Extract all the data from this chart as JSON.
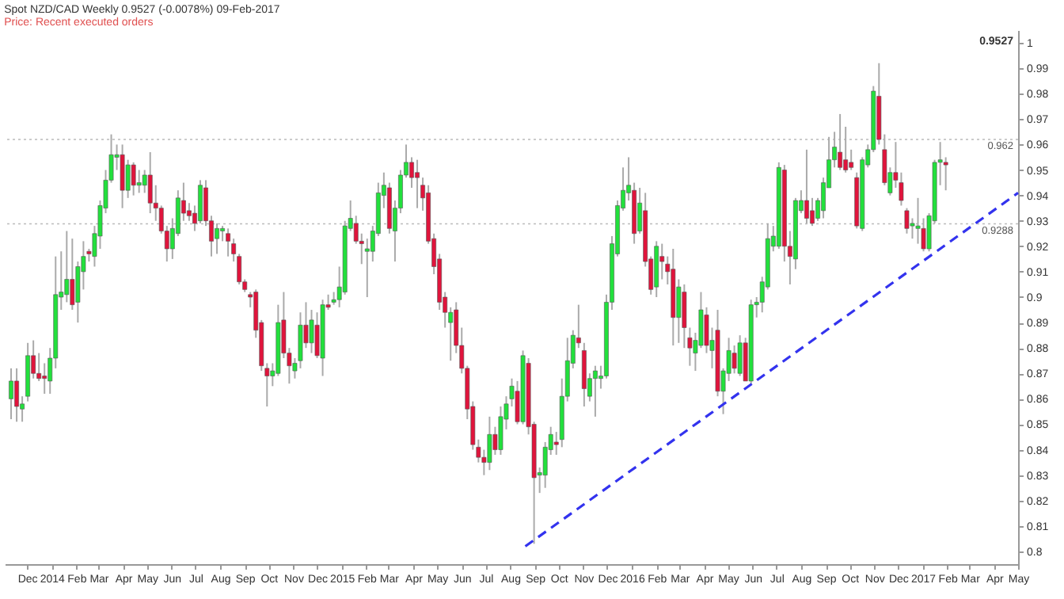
{
  "chart_data": {
    "type": "candlestick",
    "title": "Spot NZD/CAD   Weekly   0.9527 (-0.0078%)   09-Feb-2017",
    "subtitle": "Price: Recent executed orders",
    "colors": [
      "#22e03c",
      "#e0143c",
      "#22e03c",
      "#22e03c",
      "#e0143c",
      "#e0143c",
      "#e0143c",
      "#22e03c",
      "#22e03c",
      "#22e03c",
      "#22e03c",
      "#e0143c",
      "#22e03c",
      "#22e03c",
      "#e0143c",
      "#22e03c",
      "#22e03c",
      "#22e03c",
      "#22e03c",
      "#22e03c",
      "#e0143c",
      "#22e03c",
      "#e0143c",
      "#22e03c",
      "#22e03c",
      "#e0143c",
      "#e0143c",
      "#e0143c",
      "#e0143c",
      "#22e03c",
      "#22e03c",
      "#e0143c",
      "#e0143c",
      "#e0143c",
      "#22e03c",
      "#e0143c",
      "#e0143c",
      "#22e03c",
      "#22e03c",
      "#e0143c",
      "#e0143c",
      "#e0143c",
      "#e0143c",
      "#e0143c",
      "#e0143c",
      "#e0143c",
      "#e0143c",
      "#22e03c",
      "#22e03c",
      "#e0143c",
      "#e0143c",
      "#22e03c",
      "#22e03c",
      "#e0143c",
      "#22e03c",
      "#e0143c",
      "#22e03c",
      "#e0143c",
      "#22e03c",
      "#22e03c",
      "#22e03c",
      "#22e03c",
      "#e0143c",
      "#e0143c",
      "#22e03c",
      "#22e03c",
      "#22e03c",
      "#22e03c",
      "#e0143c",
      "#22e03c",
      "#22e03c",
      "#22e03c",
      "#e0143c",
      "#e0143c",
      "#e0143c",
      "#e0143c",
      "#e0143c",
      "#e0143c",
      "#e0143c",
      "#22e03c",
      "#e0143c",
      "#e0143c",
      "#e0143c",
      "#e0143c",
      "#e0143c",
      "#e0143c",
      "#22e03c",
      "#e0143c",
      "#22e03c",
      "#22e03c",
      "#22e03c",
      "#e0143c",
      "#22e03c",
      "#e0143c",
      "#e0143c",
      "#22e03c",
      "#22e03c",
      "#22e03c",
      "#e0143c",
      "#22e03c",
      "#22e03c",
      "#22e03c",
      "#e0143c",
      "#e0143c",
      "#22e03c",
      "#22e03c",
      "#22e03c",
      "#22e03c",
      "#22e03c",
      "#22e03c",
      "#22e03c",
      "#22e03c",
      "#e0143c",
      "#22e03c",
      "#e0143c",
      "#e0143c",
      "#22e03c",
      "#e0143c",
      "#e0143c",
      "#e0143c",
      "#22e03c",
      "#e0143c",
      "#e0143c",
      "#22e03c",
      "#22e03c",
      "#e0143c",
      "#22e03c",
      "#e0143c",
      "#22e03c",
      "#22e03c",
      "#e0143c",
      "#22e03c",
      "#e0143c",
      "#22e03c",
      "#22e03c",
      "#22e03c",
      "#22e03c",
      "#22e03c",
      "#22e03c",
      "#e0143c",
      "#e0143c",
      "#22e03c",
      "#22e03c",
      "#e0143c",
      "#e0143c",
      "#22e03c",
      "#22e03c",
      "#22e03c",
      "#22e03c",
      "#e0143c",
      "#e0143c",
      "#e0143c",
      "#e0143c",
      "#22e03c",
      "#22e03c",
      "#22e03c",
      "#e0143c",
      "#e0143c",
      "#22e03c",
      "#e0143c",
      "#e0143c",
      "#e0143c",
      "#22e03c",
      "#22e03c",
      "#e0143c",
      "#22e03c",
      "#22e03c",
      "#22e03c",
      "#e0143c"
    ],
    "x": [
      "2013-11-11",
      "2013-11-18",
      "2013-11-25",
      "2013-12-02",
      "2013-12-09",
      "2013-12-16",
      "2013-12-23",
      "2013-12-30",
      "2014-01-06",
      "2014-01-13",
      "2014-01-20",
      "2014-01-27",
      "2014-02-03",
      "2014-02-10",
      "2014-02-17",
      "2014-02-24",
      "2014-03-03",
      "2014-03-10",
      "2014-03-17",
      "2014-03-24",
      "2014-03-31",
      "2014-04-07",
      "2014-04-14",
      "2014-04-21",
      "2014-04-28",
      "2014-05-05",
      "2014-05-12",
      "2014-05-19",
      "2014-05-26",
      "2014-06-02",
      "2014-06-09",
      "2014-06-16",
      "2014-06-23",
      "2014-06-30",
      "2014-07-07",
      "2014-07-14",
      "2014-07-21",
      "2014-07-28",
      "2014-08-04",
      "2014-08-11",
      "2014-08-18",
      "2014-08-25",
      "2014-09-01",
      "2014-09-08",
      "2014-09-15",
      "2014-09-22",
      "2014-09-29",
      "2014-10-06",
      "2014-10-13",
      "2014-10-20",
      "2014-10-27",
      "2014-11-03",
      "2014-11-10",
      "2014-11-17",
      "2014-11-24",
      "2014-12-01",
      "2014-12-08",
      "2014-12-15",
      "2014-12-22",
      "2014-12-29",
      "2015-01-05",
      "2015-01-12",
      "2015-01-19",
      "2015-01-26",
      "2015-02-02",
      "2015-02-09",
      "2015-02-16",
      "2015-02-23",
      "2015-03-02",
      "2015-03-09",
      "2015-03-16",
      "2015-03-23",
      "2015-03-30",
      "2015-04-06",
      "2015-04-13",
      "2015-04-20",
      "2015-04-27",
      "2015-05-04",
      "2015-05-11",
      "2015-05-18",
      "2015-05-25",
      "2015-06-01",
      "2015-06-08",
      "2015-06-15",
      "2015-06-22",
      "2015-06-29",
      "2015-07-06",
      "2015-07-13",
      "2015-07-20",
      "2015-07-27",
      "2015-08-03",
      "2015-08-10",
      "2015-08-17",
      "2015-08-24",
      "2015-08-31",
      "2015-09-07",
      "2015-09-14",
      "2015-09-21",
      "2015-09-28",
      "2015-10-05",
      "2015-10-12",
      "2015-10-19",
      "2015-10-26",
      "2015-11-02",
      "2015-11-09",
      "2015-11-16",
      "2015-11-23",
      "2015-11-30",
      "2015-12-07",
      "2015-12-14",
      "2015-12-21",
      "2015-12-28",
      "2016-01-04",
      "2016-01-11",
      "2016-01-18",
      "2016-01-25",
      "2016-02-01",
      "2016-02-08",
      "2016-02-15",
      "2016-02-22",
      "2016-02-29",
      "2016-03-07",
      "2016-03-14",
      "2016-03-21",
      "2016-03-28",
      "2016-04-04",
      "2016-04-11",
      "2016-04-18",
      "2016-04-25",
      "2016-05-02",
      "2016-05-09",
      "2016-05-16",
      "2016-05-23",
      "2016-05-30",
      "2016-06-06",
      "2016-06-13",
      "2016-06-20",
      "2016-06-27",
      "2016-07-04",
      "2016-07-11",
      "2016-07-18",
      "2016-07-25",
      "2016-08-01",
      "2016-08-08",
      "2016-08-15",
      "2016-08-22",
      "2016-08-29",
      "2016-09-05",
      "2016-09-12",
      "2016-09-19",
      "2016-09-26",
      "2016-10-03",
      "2016-10-10",
      "2016-10-17",
      "2016-10-24",
      "2016-10-31",
      "2016-11-07",
      "2016-11-14",
      "2016-11-21",
      "2016-11-28",
      "2016-12-05",
      "2016-12-12",
      "2016-12-19",
      "2016-12-26",
      "2017-01-02",
      "2017-01-09",
      "2017-01-16",
      "2017-01-23",
      "2017-01-30"
    ],
    "ohlc": [
      [
        0.86,
        0.872,
        0.852,
        0.867
      ],
      [
        0.867,
        0.872,
        0.851,
        0.857
      ],
      [
        0.856,
        0.861,
        0.851,
        0.858
      ],
      [
        0.861,
        0.882,
        0.859,
        0.877
      ],
      [
        0.877,
        0.883,
        0.868,
        0.87
      ],
      [
        0.87,
        0.878,
        0.867,
        0.868
      ],
      [
        0.869,
        0.874,
        0.862,
        0.868
      ],
      [
        0.867,
        0.88,
        0.862,
        0.876
      ],
      [
        0.876,
        0.916,
        0.872,
        0.901
      ],
      [
        0.9,
        0.918,
        0.895,
        0.902
      ],
      [
        0.901,
        0.926,
        0.898,
        0.907
      ],
      [
        0.907,
        0.923,
        0.895,
        0.897
      ],
      [
        0.898,
        0.914,
        0.89,
        0.912
      ],
      [
        0.91,
        0.922,
        0.903,
        0.916
      ],
      [
        0.918,
        0.919,
        0.914,
        0.917
      ],
      [
        0.916,
        0.928,
        0.912,
        0.925
      ],
      [
        0.924,
        0.938,
        0.919,
        0.936
      ],
      [
        0.935,
        0.95,
        0.933,
        0.946
      ],
      [
        0.946,
        0.964,
        0.945,
        0.956
      ],
      [
        0.955,
        0.96,
        0.95,
        0.956
      ],
      [
        0.956,
        0.96,
        0.935,
        0.942
      ],
      [
        0.942,
        0.954,
        0.939,
        0.952
      ],
      [
        0.952,
        0.953,
        0.94,
        0.944
      ],
      [
        0.944,
        0.95,
        0.941,
        0.945
      ],
      [
        0.944,
        0.95,
        0.941,
        0.948
      ],
      [
        0.948,
        0.957,
        0.933,
        0.937
      ],
      [
        0.937,
        0.944,
        0.93,
        0.935
      ],
      [
        0.935,
        0.936,
        0.925,
        0.926
      ],
      [
        0.926,
        0.928,
        0.914,
        0.919
      ],
      [
        0.919,
        0.931,
        0.915,
        0.927
      ],
      [
        0.925,
        0.942,
        0.924,
        0.939
      ],
      [
        0.938,
        0.945,
        0.93,
        0.933
      ],
      [
        0.934,
        0.937,
        0.93,
        0.932
      ],
      [
        0.933,
        0.936,
        0.926,
        0.929
      ],
      [
        0.93,
        0.946,
        0.929,
        0.944
      ],
      [
        0.943,
        0.946,
        0.928,
        0.93
      ],
      [
        0.93,
        0.932,
        0.916,
        0.922
      ],
      [
        0.923,
        0.929,
        0.917,
        0.927
      ],
      [
        0.926,
        0.928,
        0.922,
        0.927
      ],
      [
        0.925,
        0.927,
        0.916,
        0.922
      ],
      [
        0.921,
        0.923,
        0.914,
        0.917
      ],
      [
        0.916,
        0.917,
        0.905,
        0.906
      ],
      [
        0.906,
        0.907,
        0.902,
        0.903
      ],
      [
        0.901,
        0.902,
        0.896,
        0.9
      ],
      [
        0.902,
        0.903,
        0.884,
        0.887
      ],
      [
        0.89,
        0.891,
        0.871,
        0.873
      ],
      [
        0.872,
        0.874,
        0.857,
        0.869
      ],
      [
        0.869,
        0.874,
        0.865,
        0.871
      ],
      [
        0.87,
        0.897,
        0.869,
        0.89
      ],
      [
        0.891,
        0.902,
        0.876,
        0.878
      ],
      [
        0.878,
        0.88,
        0.866,
        0.873
      ],
      [
        0.871,
        0.876,
        0.868,
        0.874
      ],
      [
        0.875,
        0.894,
        0.872,
        0.889
      ],
      [
        0.889,
        0.898,
        0.88,
        0.882
      ],
      [
        0.882,
        0.895,
        0.878,
        0.891
      ],
      [
        0.889,
        0.894,
        0.876,
        0.877
      ],
      [
        0.876,
        0.899,
        0.869,
        0.897
      ],
      [
        0.897,
        0.901,
        0.895,
        0.896
      ],
      [
        0.898,
        0.902,
        0.897,
        0.899
      ],
      [
        0.899,
        0.912,
        0.896,
        0.904
      ],
      [
        0.902,
        0.93,
        0.901,
        0.928
      ],
      [
        0.927,
        0.938,
        0.926,
        0.931
      ],
      [
        0.929,
        0.932,
        0.921,
        0.922
      ],
      [
        0.922,
        0.925,
        0.913,
        0.921
      ],
      [
        0.918,
        0.923,
        0.9,
        0.919
      ],
      [
        0.918,
        0.928,
        0.914,
        0.926
      ],
      [
        0.925,
        0.945,
        0.924,
        0.941
      ],
      [
        0.94,
        0.949,
        0.935,
        0.944
      ],
      [
        0.943,
        0.945,
        0.925,
        0.927
      ],
      [
        0.926,
        0.938,
        0.914,
        0.935
      ],
      [
        0.935,
        0.95,
        0.933,
        0.948
      ],
      [
        0.948,
        0.96,
        0.947,
        0.953
      ],
      [
        0.953,
        0.955,
        0.943,
        0.947
      ],
      [
        0.949,
        0.954,
        0.935,
        0.947
      ],
      [
        0.944,
        0.947,
        0.934,
        0.939
      ],
      [
        0.941,
        0.944,
        0.921,
        0.922
      ],
      [
        0.923,
        0.925,
        0.909,
        0.912
      ],
      [
        0.915,
        0.917,
        0.895,
        0.898
      ],
      [
        0.9,
        0.902,
        0.888,
        0.894
      ],
      [
        0.89,
        0.896,
        0.875,
        0.894
      ],
      [
        0.895,
        0.898,
        0.878,
        0.881
      ],
      [
        0.881,
        0.888,
        0.87,
        0.872
      ],
      [
        0.872,
        0.873,
        0.852,
        0.856
      ],
      [
        0.857,
        0.859,
        0.84,
        0.842
      ],
      [
        0.841,
        0.844,
        0.835,
        0.837
      ],
      [
        0.837,
        0.84,
        0.83,
        0.835
      ],
      [
        0.835,
        0.853,
        0.832,
        0.846
      ],
      [
        0.846,
        0.849,
        0.838,
        0.84
      ],
      [
        0.84,
        0.857,
        0.838,
        0.853
      ],
      [
        0.852,
        0.861,
        0.848,
        0.858
      ],
      [
        0.86,
        0.868,
        0.857,
        0.865
      ],
      [
        0.863,
        0.867,
        0.85,
        0.851
      ],
      [
        0.851,
        0.879,
        0.85,
        0.877
      ],
      [
        0.874,
        0.876,
        0.846,
        0.849
      ],
      [
        0.85,
        0.851,
        0.803,
        0.829
      ],
      [
        0.83,
        0.833,
        0.823,
        0.831
      ],
      [
        0.83,
        0.843,
        0.825,
        0.841
      ],
      [
        0.84,
        0.849,
        0.838,
        0.846
      ],
      [
        0.843,
        0.847,
        0.838,
        0.842
      ],
      [
        0.844,
        0.868,
        0.841,
        0.861
      ],
      [
        0.861,
        0.884,
        0.859,
        0.875
      ],
      [
        0.874,
        0.887,
        0.872,
        0.885
      ],
      [
        0.884,
        0.897,
        0.88,
        0.882
      ],
      [
        0.879,
        0.882,
        0.857,
        0.864
      ],
      [
        0.861,
        0.87,
        0.859,
        0.868
      ],
      [
        0.868,
        0.873,
        0.853,
        0.871
      ],
      [
        0.868,
        0.873,
        0.864,
        0.869
      ],
      [
        0.869,
        0.901,
        0.868,
        0.898
      ],
      [
        0.898,
        0.924,
        0.895,
        0.921
      ],
      [
        0.917,
        0.938,
        0.916,
        0.936
      ],
      [
        0.935,
        0.951,
        0.934,
        0.942
      ],
      [
        0.941,
        0.955,
        0.938,
        0.944
      ],
      [
        0.942,
        0.945,
        0.921,
        0.925
      ],
      [
        0.926,
        0.943,
        0.925,
        0.937
      ],
      [
        0.934,
        0.941,
        0.912,
        0.914
      ],
      [
        0.915,
        0.916,
        0.901,
        0.903
      ],
      [
        0.904,
        0.922,
        0.9,
        0.92
      ],
      [
        0.916,
        0.921,
        0.907,
        0.914
      ],
      [
        0.913,
        0.916,
        0.905,
        0.91
      ],
      [
        0.911,
        0.919,
        0.881,
        0.892
      ],
      [
        0.892,
        0.907,
        0.882,
        0.904
      ],
      [
        0.902,
        0.905,
        0.88,
        0.888
      ],
      [
        0.884,
        0.888,
        0.873,
        0.88
      ],
      [
        0.878,
        0.886,
        0.871,
        0.883
      ],
      [
        0.881,
        0.902,
        0.88,
        0.895
      ],
      [
        0.893,
        0.896,
        0.878,
        0.881
      ],
      [
        0.879,
        0.888,
        0.872,
        0.883
      ],
      [
        0.887,
        0.895,
        0.861,
        0.863
      ],
      [
        0.863,
        0.872,
        0.854,
        0.871
      ],
      [
        0.87,
        0.884,
        0.867,
        0.879
      ],
      [
        0.878,
        0.881,
        0.87,
        0.872
      ],
      [
        0.87,
        0.885,
        0.869,
        0.882
      ],
      [
        0.882,
        0.884,
        0.867,
        0.867
      ],
      [
        0.867,
        0.899,
        0.866,
        0.897
      ],
      [
        0.897,
        0.9,
        0.892,
        0.898
      ],
      [
        0.898,
        0.908,
        0.894,
        0.906
      ],
      [
        0.904,
        0.929,
        0.903,
        0.923
      ],
      [
        0.92,
        0.928,
        0.918,
        0.924
      ],
      [
        0.92,
        0.953,
        0.919,
        0.951
      ],
      [
        0.95,
        0.952,
        0.914,
        0.92
      ],
      [
        0.92,
        0.926,
        0.905,
        0.916
      ],
      [
        0.915,
        0.939,
        0.911,
        0.938
      ],
      [
        0.934,
        0.942,
        0.933,
        0.938
      ],
      [
        0.938,
        0.958,
        0.929,
        0.931
      ],
      [
        0.934,
        0.939,
        0.928,
        0.929
      ],
      [
        0.931,
        0.939,
        0.93,
        0.938
      ],
      [
        0.934,
        0.947,
        0.931,
        0.945
      ],
      [
        0.943,
        0.963,
        0.943,
        0.954
      ],
      [
        0.954,
        0.965,
        0.951,
        0.959
      ],
      [
        0.957,
        0.972,
        0.95,
        0.951
      ],
      [
        0.954,
        0.967,
        0.949,
        0.95
      ],
      [
        0.953,
        0.958,
        0.95,
        0.951
      ],
      [
        0.947,
        0.949,
        0.927,
        0.928
      ],
      [
        0.927,
        0.955,
        0.926,
        0.954
      ],
      [
        0.952,
        0.96,
        0.951,
        0.958
      ],
      [
        0.958,
        0.983,
        0.957,
        0.981
      ],
      [
        0.979,
        0.992,
        0.96,
        0.962
      ],
      [
        0.958,
        0.964,
        0.944,
        0.945
      ],
      [
        0.941,
        0.951,
        0.94,
        0.949
      ],
      [
        0.949,
        0.961,
        0.943,
        0.946
      ],
      [
        0.945,
        0.949,
        0.936,
        0.938
      ],
      [
        0.934,
        0.935,
        0.925,
        0.927
      ],
      [
        0.928,
        0.931,
        0.923,
        0.929
      ],
      [
        0.927,
        0.939,
        0.921,
        0.928
      ],
      [
        0.927,
        0.931,
        0.918,
        0.919
      ],
      [
        0.919,
        0.933,
        0.918,
        0.932
      ],
      [
        0.93,
        0.954,
        0.929,
        0.953
      ],
      [
        0.953,
        0.961,
        0.944,
        0.954
      ],
      [
        0.953,
        0.955,
        0.942,
        0.952
      ]
    ],
    "series": [
      {
        "type": "line",
        "x": [
          "2015-08-20",
          "2017-05-01"
        ],
        "values": [
          0.802,
          0.941
        ],
        "color": "#3333ee",
        "line_style": "dashed"
      }
    ],
    "ref_lines": [
      {
        "axis": "y",
        "value": 0.962,
        "label": "0.962",
        "color": "#bbbbbb",
        "line_style": "dotted"
      },
      {
        "axis": "y",
        "value": 0.9288,
        "label": "0.9288",
        "color": "#bbbbbb",
        "line_style": "dotted"
      }
    ],
    "annotations": [
      "0.9527"
    ],
    "xlim": [
      "2013-11-03",
      "2017-05-01"
    ],
    "xticks": [
      {
        "value": "2013-12",
        "label": "Dec"
      },
      {
        "value": "2014-01",
        "label": "2014"
      },
      {
        "value": "2014-02",
        "label": "Feb"
      },
      {
        "value": "2014-03",
        "label": "Mar"
      },
      {
        "value": "2014-04",
        "label": "Apr"
      },
      {
        "value": "2014-05",
        "label": "May"
      },
      {
        "value": "2014-06",
        "label": "Jun"
      },
      {
        "value": "2014-07",
        "label": "Jul"
      },
      {
        "value": "2014-08",
        "label": "Aug"
      },
      {
        "value": "2014-09",
        "label": "Sep"
      },
      {
        "value": "2014-10",
        "label": "Oct"
      },
      {
        "value": "2014-11",
        "label": "Nov"
      },
      {
        "value": "2014-12",
        "label": "Dec"
      },
      {
        "value": "2015-01",
        "label": "2015"
      },
      {
        "value": "2015-02",
        "label": "Feb"
      },
      {
        "value": "2015-03",
        "label": "Mar"
      },
      {
        "value": "2015-04",
        "label": "Apr"
      },
      {
        "value": "2015-05",
        "label": "May"
      },
      {
        "value": "2015-06",
        "label": "Jun"
      },
      {
        "value": "2015-07",
        "label": "Jul"
      },
      {
        "value": "2015-08",
        "label": "Aug"
      },
      {
        "value": "2015-09",
        "label": "Sep"
      },
      {
        "value": "2015-10",
        "label": "Oct"
      },
      {
        "value": "2015-11",
        "label": "Nov"
      },
      {
        "value": "2015-12",
        "label": "Dec"
      },
      {
        "value": "2016-01",
        "label": "2016"
      },
      {
        "value": "2016-02",
        "label": "Feb"
      },
      {
        "value": "2016-03",
        "label": "Mar"
      },
      {
        "value": "2016-04",
        "label": "Apr"
      },
      {
        "value": "2016-05",
        "label": "May"
      },
      {
        "value": "2016-06",
        "label": "Jun"
      },
      {
        "value": "2016-07",
        "label": "Jul"
      },
      {
        "value": "2016-08",
        "label": "Aug"
      },
      {
        "value": "2016-09",
        "label": "Sep"
      },
      {
        "value": "2016-10",
        "label": "Oct"
      },
      {
        "value": "2016-11",
        "label": "Nov"
      },
      {
        "value": "2016-12",
        "label": "Dec"
      },
      {
        "value": "2017-01",
        "label": "2017"
      },
      {
        "value": "2017-02",
        "label": "Feb"
      },
      {
        "value": "2017-03",
        "label": "Mar"
      },
      {
        "value": "2017-04",
        "label": "Apr"
      },
      {
        "value": "2017-05",
        "label": "May"
      }
    ],
    "ylim": [
      0.795,
      1.005
    ],
    "yticks": [
      0.8,
      0.81,
      0.82,
      0.83,
      0.84,
      0.85,
      0.86,
      0.87,
      0.88,
      0.89,
      0.9,
      0.91,
      0.92,
      0.93,
      0.94,
      0.95,
      0.96,
      0.97,
      0.98,
      0.99,
      1
    ]
  }
}
